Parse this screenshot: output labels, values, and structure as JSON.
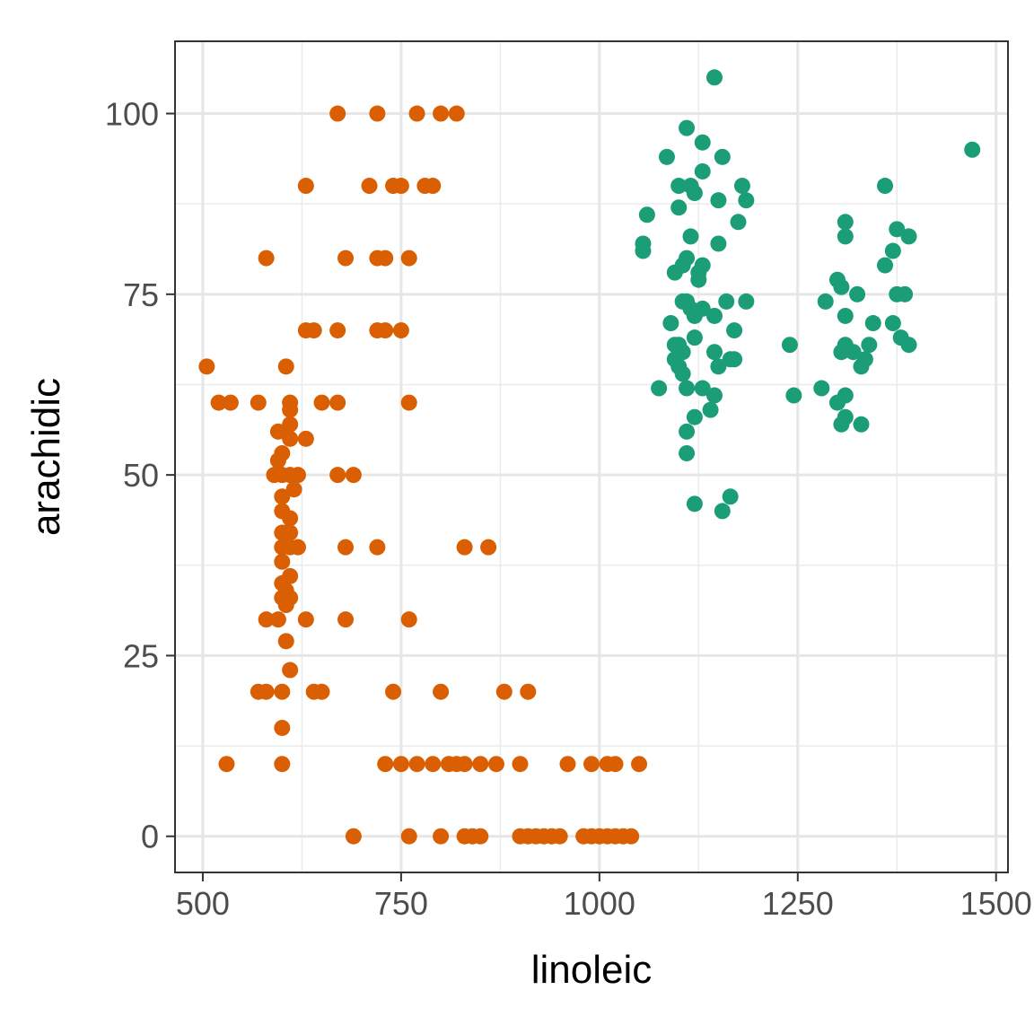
{
  "chart_data": {
    "type": "scatter",
    "title": "",
    "xlabel": "linoleic",
    "ylabel": "arachidic",
    "xlim": [
      465,
      1515
    ],
    "ylim": [
      -5,
      110
    ],
    "x_ticks": [
      500,
      750,
      1000,
      1250,
      1500
    ],
    "y_ticks": [
      0,
      25,
      50,
      75,
      100
    ],
    "x_tick_labels": [
      "500",
      "750",
      "1000",
      "1250",
      "1500"
    ],
    "y_tick_labels": [
      "0",
      "25",
      "50",
      "75",
      "100"
    ],
    "grid": true,
    "legend": "none",
    "series": [
      {
        "color": "#d95f02",
        "points": [
          [
            670,
            100
          ],
          [
            720,
            100
          ],
          [
            770,
            100
          ],
          [
            800,
            100
          ],
          [
            820,
            100
          ],
          [
            630,
            90
          ],
          [
            710,
            90
          ],
          [
            740,
            90
          ],
          [
            750,
            90
          ],
          [
            780,
            90
          ],
          [
            790,
            90
          ],
          [
            580,
            80
          ],
          [
            680,
            80
          ],
          [
            720,
            80
          ],
          [
            730,
            80
          ],
          [
            760,
            80
          ],
          [
            630,
            70
          ],
          [
            640,
            70
          ],
          [
            670,
            70
          ],
          [
            720,
            70
          ],
          [
            730,
            70
          ],
          [
            750,
            70
          ],
          [
            505,
            65
          ],
          [
            605,
            65
          ],
          [
            520,
            60
          ],
          [
            535,
            60
          ],
          [
            570,
            60
          ],
          [
            610,
            60
          ],
          [
            650,
            60
          ],
          [
            670,
            60
          ],
          [
            760,
            60
          ],
          [
            610,
            59
          ],
          [
            610,
            57
          ],
          [
            595,
            56
          ],
          [
            610,
            55
          ],
          [
            630,
            55
          ],
          [
            600,
            53
          ],
          [
            595,
            52
          ],
          [
            590,
            50
          ],
          [
            600,
            50
          ],
          [
            610,
            50
          ],
          [
            620,
            50
          ],
          [
            670,
            50
          ],
          [
            690,
            50
          ],
          [
            615,
            48
          ],
          [
            600,
            47
          ],
          [
            600,
            45
          ],
          [
            610,
            44
          ],
          [
            600,
            42
          ],
          [
            605,
            42
          ],
          [
            610,
            42
          ],
          [
            600,
            40
          ],
          [
            610,
            40
          ],
          [
            620,
            40
          ],
          [
            680,
            40
          ],
          [
            720,
            40
          ],
          [
            830,
            40
          ],
          [
            860,
            40
          ],
          [
            600,
            38
          ],
          [
            610,
            36
          ],
          [
            600,
            35
          ],
          [
            605,
            34
          ],
          [
            600,
            33
          ],
          [
            610,
            33
          ],
          [
            605,
            32
          ],
          [
            580,
            30
          ],
          [
            595,
            30
          ],
          [
            630,
            30
          ],
          [
            680,
            30
          ],
          [
            760,
            30
          ],
          [
            605,
            27
          ],
          [
            610,
            23
          ],
          [
            570,
            20
          ],
          [
            580,
            20
          ],
          [
            600,
            20
          ],
          [
            640,
            20
          ],
          [
            650,
            20
          ],
          [
            740,
            20
          ],
          [
            800,
            20
          ],
          [
            880,
            20
          ],
          [
            910,
            20
          ],
          [
            600,
            15
          ],
          [
            530,
            10
          ],
          [
            600,
            10
          ],
          [
            730,
            10
          ],
          [
            750,
            10
          ],
          [
            770,
            10
          ],
          [
            790,
            10
          ],
          [
            810,
            10
          ],
          [
            820,
            10
          ],
          [
            830,
            10
          ],
          [
            850,
            10
          ],
          [
            870,
            10
          ],
          [
            900,
            10
          ],
          [
            960,
            10
          ],
          [
            990,
            10
          ],
          [
            1010,
            10
          ],
          [
            1020,
            10
          ],
          [
            1050,
            10
          ],
          [
            690,
            0
          ],
          [
            760,
            0
          ],
          [
            800,
            0
          ],
          [
            830,
            0
          ],
          [
            840,
            0
          ],
          [
            850,
            0
          ],
          [
            900,
            0
          ],
          [
            910,
            0
          ],
          [
            920,
            0
          ],
          [
            930,
            0
          ],
          [
            940,
            0
          ],
          [
            950,
            0
          ],
          [
            980,
            0
          ],
          [
            990,
            0
          ],
          [
            1000,
            0
          ],
          [
            1010,
            0
          ],
          [
            1020,
            0
          ],
          [
            1030,
            0
          ],
          [
            1040,
            0
          ]
        ]
      },
      {
        "color": "#1b9e77",
        "points": [
          [
            1145,
            105
          ],
          [
            1470,
            95
          ],
          [
            1110,
            98
          ],
          [
            1130,
            96
          ],
          [
            1085,
            94
          ],
          [
            1155,
            94
          ],
          [
            1130,
            92
          ],
          [
            1100,
            90
          ],
          [
            1115,
            90
          ],
          [
            1120,
            89
          ],
          [
            1180,
            90
          ],
          [
            1360,
            90
          ],
          [
            1150,
            88
          ],
          [
            1185,
            88
          ],
          [
            1100,
            87
          ],
          [
            1060,
            86
          ],
          [
            1175,
            85
          ],
          [
            1310,
            85
          ],
          [
            1375,
            84
          ],
          [
            1115,
            83
          ],
          [
            1310,
            83
          ],
          [
            1390,
            83
          ],
          [
            1055,
            82
          ],
          [
            1150,
            82
          ],
          [
            1055,
            81
          ],
          [
            1370,
            81
          ],
          [
            1110,
            80
          ],
          [
            1105,
            79
          ],
          [
            1130,
            79
          ],
          [
            1360,
            79
          ],
          [
            1095,
            78
          ],
          [
            1125,
            78
          ],
          [
            1125,
            77
          ],
          [
            1300,
            77
          ],
          [
            1305,
            76
          ],
          [
            1105,
            74
          ],
          [
            1110,
            74
          ],
          [
            1160,
            74
          ],
          [
            1185,
            74
          ],
          [
            1285,
            74
          ],
          [
            1325,
            75
          ],
          [
            1375,
            75
          ],
          [
            1385,
            75
          ],
          [
            1115,
            73
          ],
          [
            1130,
            73
          ],
          [
            1120,
            72
          ],
          [
            1145,
            72
          ],
          [
            1310,
            72
          ],
          [
            1090,
            71
          ],
          [
            1345,
            71
          ],
          [
            1370,
            71
          ],
          [
            1170,
            70
          ],
          [
            1120,
            69
          ],
          [
            1380,
            69
          ],
          [
            1095,
            68
          ],
          [
            1100,
            68
          ],
          [
            1240,
            68
          ],
          [
            1310,
            68
          ],
          [
            1340,
            68
          ],
          [
            1390,
            68
          ],
          [
            1105,
            67
          ],
          [
            1145,
            67
          ],
          [
            1305,
            67
          ],
          [
            1320,
            67
          ],
          [
            1095,
            66
          ],
          [
            1165,
            66
          ],
          [
            1170,
            66
          ],
          [
            1335,
            66
          ],
          [
            1100,
            65
          ],
          [
            1150,
            65
          ],
          [
            1330,
            65
          ],
          [
            1105,
            64
          ],
          [
            1075,
            62
          ],
          [
            1110,
            62
          ],
          [
            1130,
            62
          ],
          [
            1280,
            62
          ],
          [
            1145,
            61
          ],
          [
            1245,
            61
          ],
          [
            1310,
            61
          ],
          [
            1300,
            60
          ],
          [
            1140,
            59
          ],
          [
            1120,
            58
          ],
          [
            1310,
            58
          ],
          [
            1305,
            57
          ],
          [
            1330,
            57
          ],
          [
            1110,
            56
          ],
          [
            1110,
            53
          ],
          [
            1165,
            47
          ],
          [
            1120,
            46
          ],
          [
            1155,
            45
          ]
        ]
      }
    ]
  }
}
